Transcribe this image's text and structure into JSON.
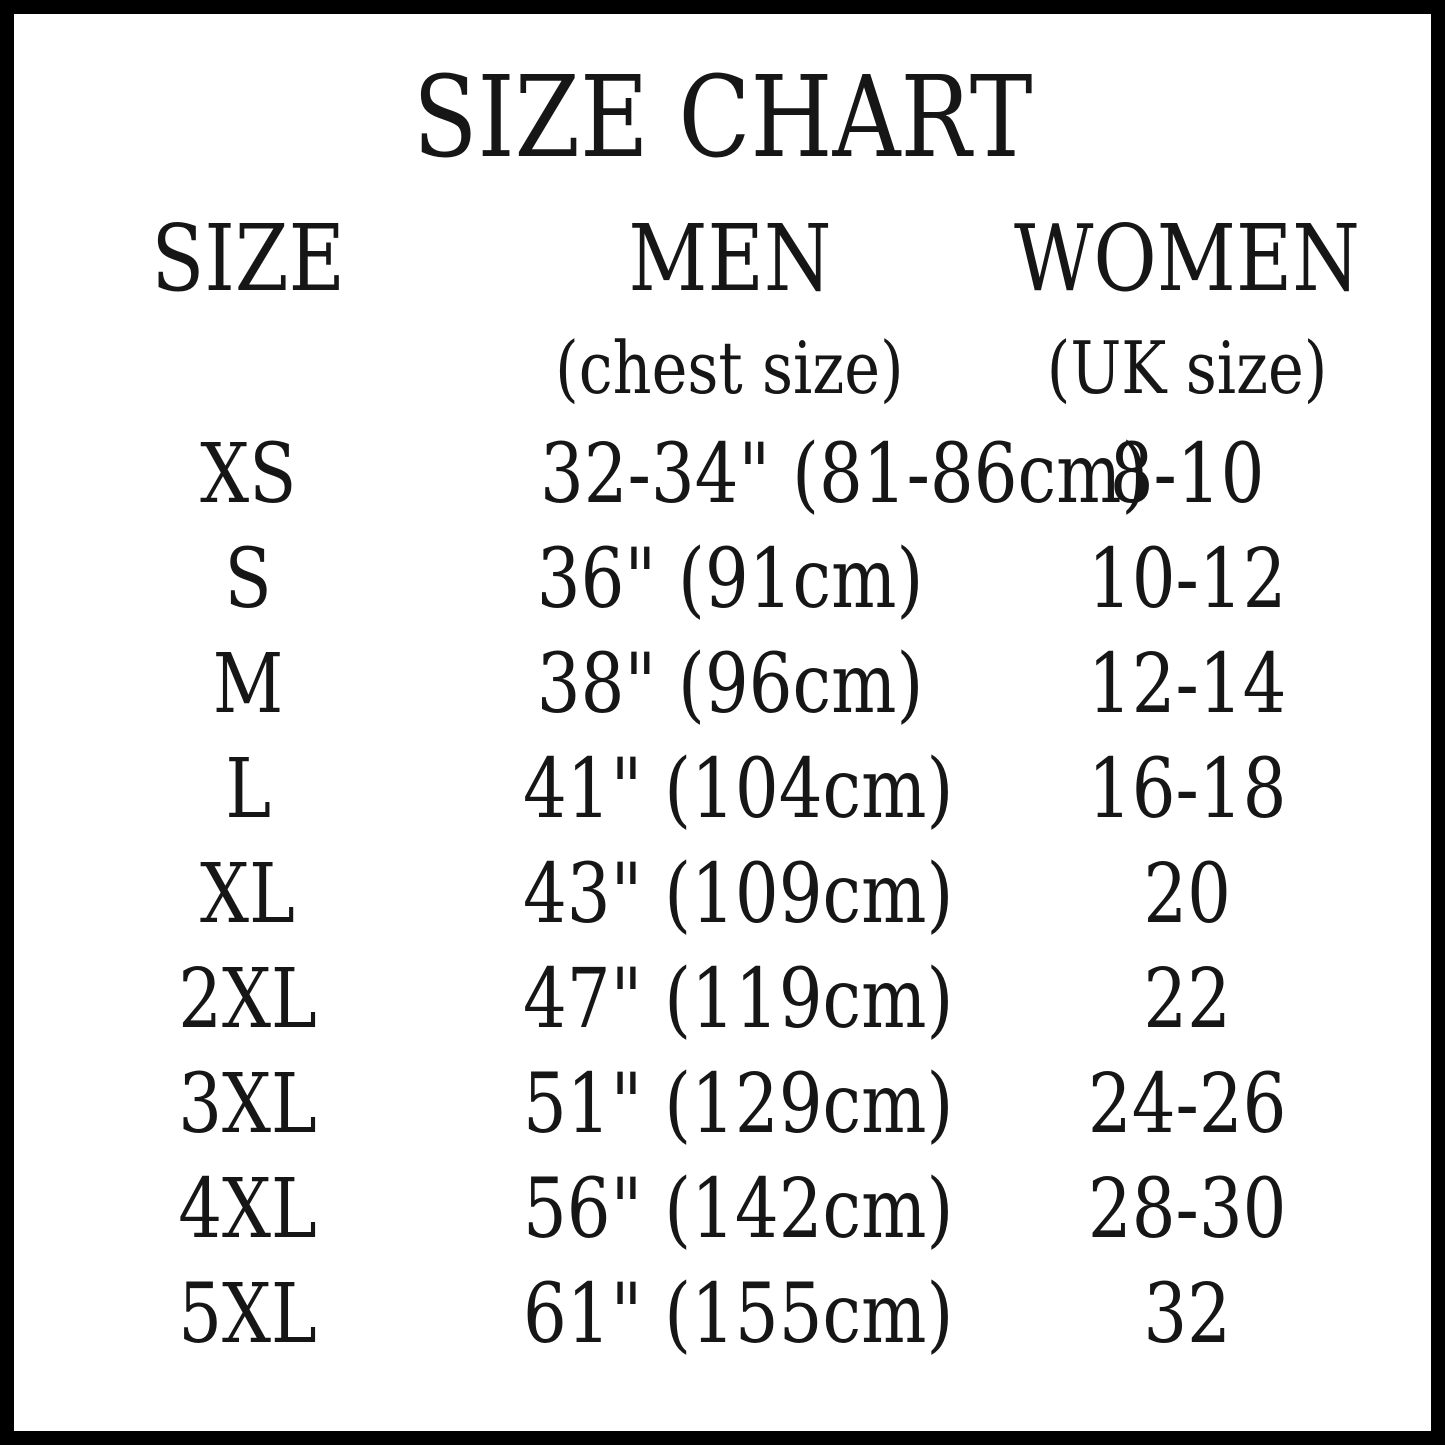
{
  "title": "SIZE CHART",
  "chart_data": {
    "type": "table",
    "title": "SIZE CHART",
    "columns": [
      {
        "label": "SIZE",
        "sublabel": ""
      },
      {
        "label": "MEN",
        "sublabel": "(chest size)"
      },
      {
        "label": "WOMEN",
        "sublabel": "(UK size)"
      }
    ],
    "rows": [
      [
        "XS",
        "32-34\" (81-86cm)",
        "8-10"
      ],
      [
        "S",
        "36\" (91cm)",
        "10-12"
      ],
      [
        "M",
        "38\" (96cm)",
        "12-14"
      ],
      [
        "L",
        "41\" (104cm)",
        "16-18"
      ],
      [
        "XL",
        "43\" (109cm)",
        "20"
      ],
      [
        "2XL",
        "47\" (119cm)",
        "22"
      ],
      [
        "3XL",
        "51\" (129cm)",
        "24-26"
      ],
      [
        "4XL",
        "56\" (142cm)",
        "28-30"
      ],
      [
        "5XL",
        "61\" (155cm)",
        "32"
      ]
    ]
  },
  "colors": {
    "background": "#ffffff",
    "border": "#000000",
    "text": "#161616"
  }
}
